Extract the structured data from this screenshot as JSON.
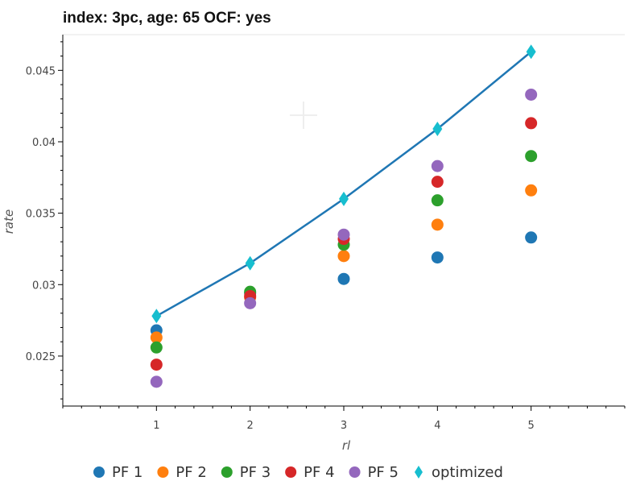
{
  "chart_data": {
    "type": "scatter",
    "title": "index: 3pc, age: 65 OCF: yes",
    "xlabel": "rl",
    "ylabel": "rate",
    "x": [
      1,
      2,
      3,
      4,
      5
    ],
    "xlim": [
      0,
      6
    ],
    "ylim": [
      0.0215,
      0.0475
    ],
    "x_ticks": [
      "1",
      "2",
      "3",
      "4",
      "5"
    ],
    "y_ticks": [
      "0.025",
      "0.03",
      "0.035",
      "0.04",
      "0.045"
    ],
    "legend_position": "bottom",
    "grid": false,
    "series": [
      {
        "name": "PF 1",
        "color": "#1f77b4",
        "marker": "circle",
        "values": [
          0.0268,
          0.0294,
          0.0304,
          0.0319,
          0.0333
        ]
      },
      {
        "name": "PF 2",
        "color": "#ff7f0e",
        "marker": "circle",
        "values": [
          0.0263,
          0.0291,
          0.032,
          0.0342,
          0.0366
        ]
      },
      {
        "name": "PF 3",
        "color": "#2ca02c",
        "marker": "circle",
        "values": [
          0.0256,
          0.0295,
          0.0328,
          0.0359,
          0.039
        ]
      },
      {
        "name": "PF 4",
        "color": "#d62728",
        "marker": "circle",
        "values": [
          0.0244,
          0.0292,
          0.0332,
          0.0372,
          0.0413
        ]
      },
      {
        "name": "PF 5",
        "color": "#9467bd",
        "marker": "circle",
        "values": [
          0.0232,
          0.0287,
          0.0335,
          0.0383,
          0.0433
        ]
      },
      {
        "name": "optimized",
        "color": "#17becf",
        "marker": "diamond",
        "line_color": "#1f77b4",
        "line": true,
        "values": [
          0.0278,
          0.0315,
          0.036,
          0.0409,
          0.0463
        ]
      }
    ]
  }
}
